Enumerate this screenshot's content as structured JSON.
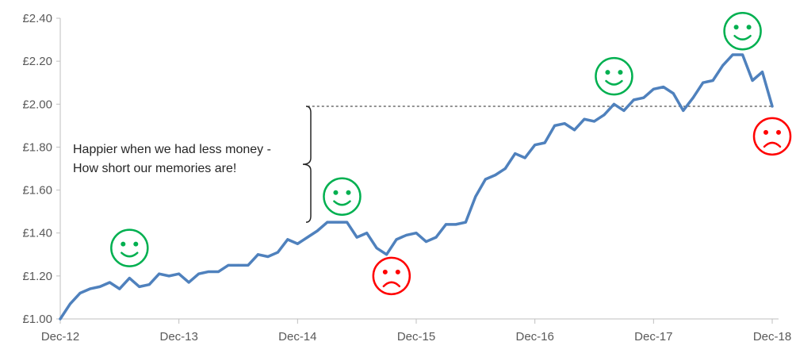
{
  "chart_data": {
    "type": "line",
    "title": "",
    "xlabel": "",
    "ylabel": "",
    "ylim": [
      1.0,
      2.4
    ],
    "grid": false,
    "legend": "none",
    "y_ticks": [
      {
        "value": 1.0,
        "label": "£1.00"
      },
      {
        "value": 1.2,
        "label": "£1.20"
      },
      {
        "value": 1.4,
        "label": "£1.40"
      },
      {
        "value": 1.6,
        "label": "£1.60"
      },
      {
        "value": 1.8,
        "label": "£1.80"
      },
      {
        "value": 2.0,
        "label": "£2.00"
      },
      {
        "value": 2.2,
        "label": "£2.20"
      },
      {
        "value": 2.4,
        "label": "£2.40"
      }
    ],
    "x_ticks": [
      {
        "value": 0,
        "label": "Dec-12"
      },
      {
        "value": 12,
        "label": "Dec-13"
      },
      {
        "value": 24,
        "label": "Dec-14"
      },
      {
        "value": 36,
        "label": "Dec-15"
      },
      {
        "value": 48,
        "label": "Dec-16"
      },
      {
        "value": 60,
        "label": "Dec-17"
      },
      {
        "value": 72,
        "label": "Dec-18"
      }
    ],
    "series": [
      {
        "color": "#4f81bd",
        "values": [
          1.0,
          1.07,
          1.12,
          1.14,
          1.15,
          1.17,
          1.14,
          1.19,
          1.15,
          1.16,
          1.21,
          1.2,
          1.21,
          1.17,
          1.21,
          1.22,
          1.22,
          1.25,
          1.25,
          1.25,
          1.3,
          1.29,
          1.31,
          1.37,
          1.35,
          1.38,
          1.41,
          1.45,
          1.45,
          1.45,
          1.38,
          1.4,
          1.33,
          1.3,
          1.37,
          1.39,
          1.4,
          1.36,
          1.38,
          1.44,
          1.44,
          1.45,
          1.57,
          1.65,
          1.67,
          1.7,
          1.77,
          1.75,
          1.81,
          1.82,
          1.9,
          1.91,
          1.88,
          1.93,
          1.92,
          1.95,
          2.0,
          1.97,
          2.02,
          2.03,
          2.07,
          2.08,
          2.05,
          1.97,
          2.03,
          2.1,
          2.11,
          2.18,
          2.23,
          2.23,
          2.11,
          2.15,
          1.99
        ]
      }
    ],
    "reference_line": {
      "value": 1.99,
      "from": 25,
      "to": 72,
      "color": "#262626",
      "style": "dashed"
    },
    "annotation": {
      "lines": [
        "Happier when we had less money -",
        "How short our memories are!"
      ],
      "brace_from": 1.45,
      "brace_to": 1.99
    },
    "faces": [
      {
        "type": "happy",
        "color": "#00b050",
        "x": 7,
        "y": 1.33
      },
      {
        "type": "happy",
        "color": "#00b050",
        "x": 28.5,
        "y": 1.57
      },
      {
        "type": "sad",
        "color": "#ff0000",
        "x": 33.5,
        "y": 1.2
      },
      {
        "type": "happy",
        "color": "#00b050",
        "x": 56,
        "y": 2.13
      },
      {
        "type": "happy",
        "color": "#00b050",
        "x": 69,
        "y": 2.34
      },
      {
        "type": "sad",
        "color": "#ff0000",
        "x": 72,
        "y": 1.85
      }
    ]
  }
}
